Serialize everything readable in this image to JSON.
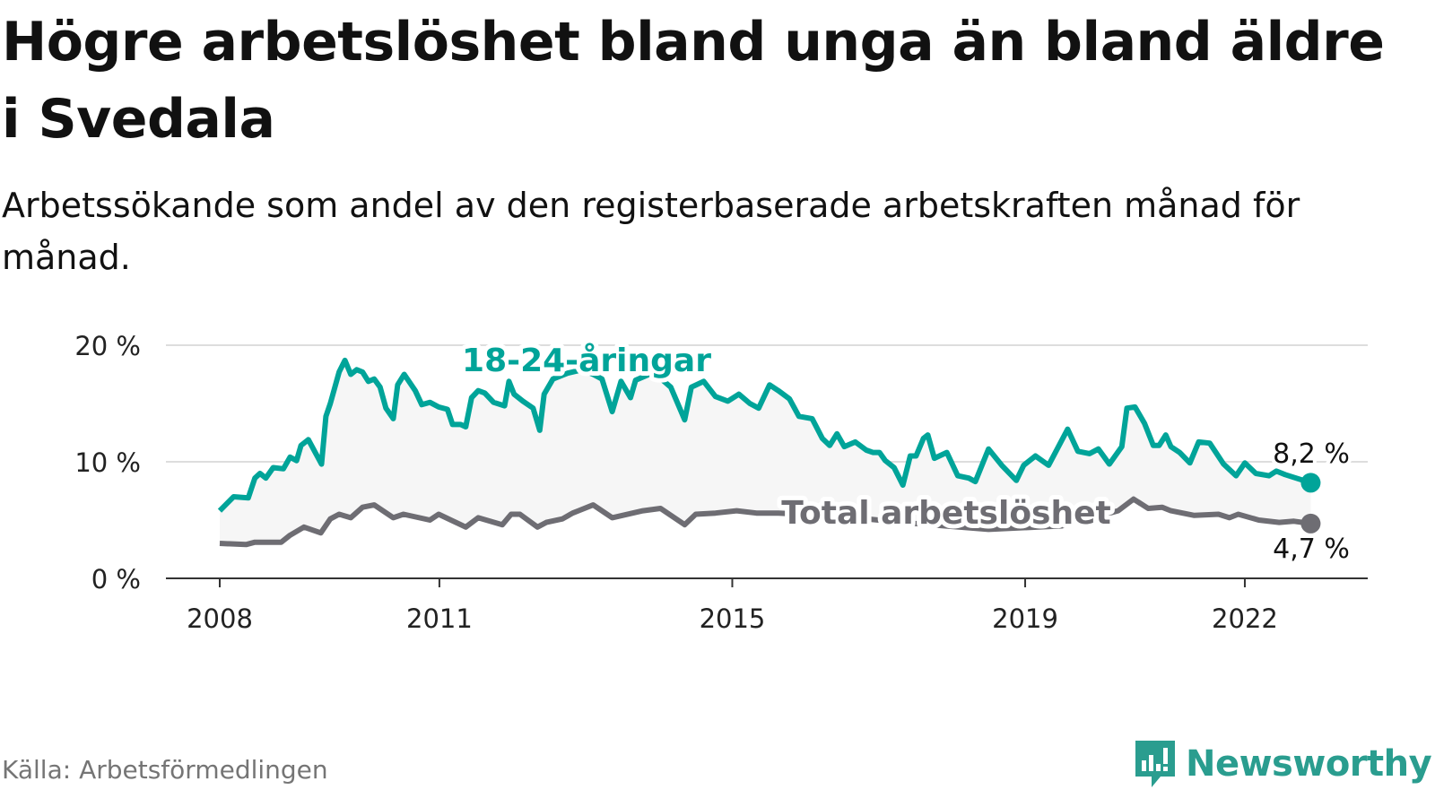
{
  "header": {
    "title": "Högre arbetslöshet bland unga än bland äldre i Svedala",
    "subtitle": "Arbetssökande som andel av den registerbaserade arbetskraften månad för månad."
  },
  "footer": {
    "source": "Källa: Arbetsförmedlingen",
    "brand": "Newsworthy"
  },
  "colors": {
    "youth": "#00a499",
    "total": "#6e6d73",
    "fill": "#f6f6f6",
    "grid": "#dddddd",
    "brand": "#2a9d8f"
  },
  "chart_data": {
    "type": "line",
    "title": "Högre arbetslöshet bland unga än bland äldre i Svedala",
    "xlabel": "",
    "ylabel": "",
    "ylim": [
      0,
      20
    ],
    "xlim": [
      2008,
      2022.9
    ],
    "y_ticks": [
      {
        "value": 0,
        "label": "0 %"
      },
      {
        "value": 10,
        "label": "10 %"
      },
      {
        "value": 20,
        "label": "20 %"
      }
    ],
    "x_ticks": [
      {
        "value": 2008,
        "label": "2008"
      },
      {
        "value": 2011,
        "label": "2011"
      },
      {
        "value": 2015,
        "label": "2015"
      },
      {
        "value": 2019,
        "label": "2019"
      },
      {
        "value": 2022,
        "label": "2022"
      }
    ],
    "grid": true,
    "series": [
      {
        "name": "18-24-åringar",
        "end_label": "8,2 %",
        "points": [
          [
            2008.0,
            5.8
          ],
          [
            2008.19,
            7.0
          ],
          [
            2008.39,
            6.9
          ],
          [
            2008.48,
            8.6
          ],
          [
            2008.55,
            9.0
          ],
          [
            2008.63,
            8.6
          ],
          [
            2008.73,
            9.5
          ],
          [
            2008.87,
            9.4
          ],
          [
            2008.96,
            10.4
          ],
          [
            2009.05,
            10.1
          ],
          [
            2009.11,
            11.4
          ],
          [
            2009.21,
            11.9
          ],
          [
            2009.39,
            9.8
          ],
          [
            2009.45,
            13.9
          ],
          [
            2009.51,
            15.0
          ],
          [
            2009.63,
            17.7
          ],
          [
            2009.71,
            18.7
          ],
          [
            2009.79,
            17.5
          ],
          [
            2009.87,
            17.9
          ],
          [
            2009.95,
            17.7
          ],
          [
            2010.03,
            16.9
          ],
          [
            2010.11,
            17.1
          ],
          [
            2010.19,
            16.4
          ],
          [
            2010.27,
            14.6
          ],
          [
            2010.37,
            13.7
          ],
          [
            2010.43,
            16.6
          ],
          [
            2010.52,
            17.5
          ],
          [
            2010.67,
            16.1
          ],
          [
            2010.76,
            14.9
          ],
          [
            2010.87,
            15.1
          ],
          [
            2010.99,
            14.7
          ],
          [
            2011.11,
            14.5
          ],
          [
            2011.18,
            13.2
          ],
          [
            2011.29,
            13.2
          ],
          [
            2011.36,
            13.0
          ],
          [
            2011.44,
            15.5
          ],
          [
            2011.53,
            16.1
          ],
          [
            2011.62,
            15.9
          ],
          [
            2011.74,
            15.1
          ],
          [
            2011.89,
            14.8
          ],
          [
            2011.95,
            16.9
          ],
          [
            2012.02,
            15.8
          ],
          [
            2012.14,
            15.2
          ],
          [
            2012.28,
            14.6
          ],
          [
            2012.37,
            12.7
          ],
          [
            2012.43,
            15.8
          ],
          [
            2012.55,
            17.1
          ],
          [
            2012.75,
            17.6
          ],
          [
            2012.95,
            17.9
          ],
          [
            2013.1,
            17.5
          ],
          [
            2013.22,
            17.1
          ],
          [
            2013.36,
            14.3
          ],
          [
            2013.48,
            16.9
          ],
          [
            2013.61,
            15.5
          ],
          [
            2013.68,
            17.0
          ],
          [
            2013.9,
            17.6
          ],
          [
            2014.05,
            17.0
          ],
          [
            2014.16,
            16.4
          ],
          [
            2014.35,
            13.6
          ],
          [
            2014.44,
            16.4
          ],
          [
            2014.61,
            16.9
          ],
          [
            2014.77,
            15.6
          ],
          [
            2014.94,
            15.2
          ],
          [
            2015.09,
            15.8
          ],
          [
            2015.24,
            15.0
          ],
          [
            2015.36,
            14.6
          ],
          [
            2015.51,
            16.6
          ],
          [
            2015.63,
            16.1
          ],
          [
            2015.78,
            15.4
          ],
          [
            2015.91,
            13.9
          ],
          [
            2016.09,
            13.7
          ],
          [
            2016.23,
            12.0
          ],
          [
            2016.33,
            11.4
          ],
          [
            2016.43,
            12.4
          ],
          [
            2016.53,
            11.3
          ],
          [
            2016.68,
            11.7
          ],
          [
            2016.83,
            11.0
          ],
          [
            2016.92,
            10.8
          ],
          [
            2017.01,
            10.8
          ],
          [
            2017.09,
            10.1
          ],
          [
            2017.21,
            9.5
          ],
          [
            2017.33,
            8.0
          ],
          [
            2017.43,
            10.5
          ],
          [
            2017.51,
            10.5
          ],
          [
            2017.61,
            12.0
          ],
          [
            2017.67,
            12.3
          ],
          [
            2017.76,
            10.3
          ],
          [
            2017.93,
            10.8
          ],
          [
            2018.08,
            8.8
          ],
          [
            2018.23,
            8.6
          ],
          [
            2018.32,
            8.3
          ],
          [
            2018.5,
            11.1
          ],
          [
            2018.68,
            9.7
          ],
          [
            2018.88,
            8.4
          ],
          [
            2018.98,
            9.7
          ],
          [
            2019.14,
            10.5
          ],
          [
            2019.32,
            9.7
          ],
          [
            2019.58,
            12.8
          ],
          [
            2019.72,
            10.9
          ],
          [
            2019.88,
            10.7
          ],
          [
            2020.0,
            11.1
          ],
          [
            2020.15,
            9.8
          ],
          [
            2020.32,
            11.3
          ],
          [
            2020.39,
            14.6
          ],
          [
            2020.5,
            14.7
          ],
          [
            2020.63,
            13.3
          ],
          [
            2020.75,
            11.4
          ],
          [
            2020.83,
            11.4
          ],
          [
            2020.92,
            12.3
          ],
          [
            2020.99,
            11.3
          ],
          [
            2021.11,
            10.8
          ],
          [
            2021.25,
            9.9
          ],
          [
            2021.37,
            11.7
          ],
          [
            2021.52,
            11.6
          ],
          [
            2021.71,
            9.8
          ],
          [
            2021.88,
            8.8
          ],
          [
            2022.0,
            9.9
          ],
          [
            2022.15,
            9.0
          ],
          [
            2022.33,
            8.8
          ],
          [
            2022.43,
            9.2
          ],
          [
            2022.55,
            8.9
          ],
          [
            2022.9,
            8.2
          ]
        ]
      },
      {
        "name": "Total arbetslöshet",
        "end_label": "4,7 %",
        "points": [
          [
            2008.0,
            3.0
          ],
          [
            2008.36,
            2.9
          ],
          [
            2008.48,
            3.1
          ],
          [
            2008.84,
            3.1
          ],
          [
            2008.96,
            3.7
          ],
          [
            2009.15,
            4.4
          ],
          [
            2009.38,
            3.9
          ],
          [
            2009.51,
            5.1
          ],
          [
            2009.63,
            5.5
          ],
          [
            2009.79,
            5.2
          ],
          [
            2009.95,
            6.1
          ],
          [
            2010.11,
            6.3
          ],
          [
            2010.37,
            5.2
          ],
          [
            2010.51,
            5.5
          ],
          [
            2010.87,
            5.0
          ],
          [
            2010.99,
            5.5
          ],
          [
            2011.36,
            4.4
          ],
          [
            2011.53,
            5.2
          ],
          [
            2011.86,
            4.6
          ],
          [
            2011.98,
            5.5
          ],
          [
            2012.1,
            5.5
          ],
          [
            2012.34,
            4.4
          ],
          [
            2012.46,
            4.8
          ],
          [
            2012.68,
            5.1
          ],
          [
            2012.82,
            5.6
          ],
          [
            2012.9,
            5.8
          ],
          [
            2013.1,
            6.3
          ],
          [
            2013.36,
            5.2
          ],
          [
            2013.78,
            5.8
          ],
          [
            2014.02,
            6.0
          ],
          [
            2014.35,
            4.6
          ],
          [
            2014.5,
            5.5
          ],
          [
            2014.77,
            5.6
          ],
          [
            2015.06,
            5.8
          ],
          [
            2015.33,
            5.6
          ],
          [
            2015.63,
            5.6
          ],
          [
            2016.5,
            5.3
          ],
          [
            2017.5,
            4.7
          ],
          [
            2018.5,
            4.2
          ],
          [
            2019.5,
            4.5
          ],
          [
            2020.1,
            5.5
          ],
          [
            2020.27,
            5.8
          ],
          [
            2020.48,
            6.8
          ],
          [
            2020.68,
            6.0
          ],
          [
            2020.87,
            6.1
          ],
          [
            2020.99,
            5.8
          ],
          [
            2021.31,
            5.4
          ],
          [
            2021.64,
            5.5
          ],
          [
            2021.79,
            5.2
          ],
          [
            2021.91,
            5.5
          ],
          [
            2022.19,
            5.0
          ],
          [
            2022.47,
            4.8
          ],
          [
            2022.67,
            4.9
          ],
          [
            2022.9,
            4.7
          ]
        ]
      }
    ]
  }
}
